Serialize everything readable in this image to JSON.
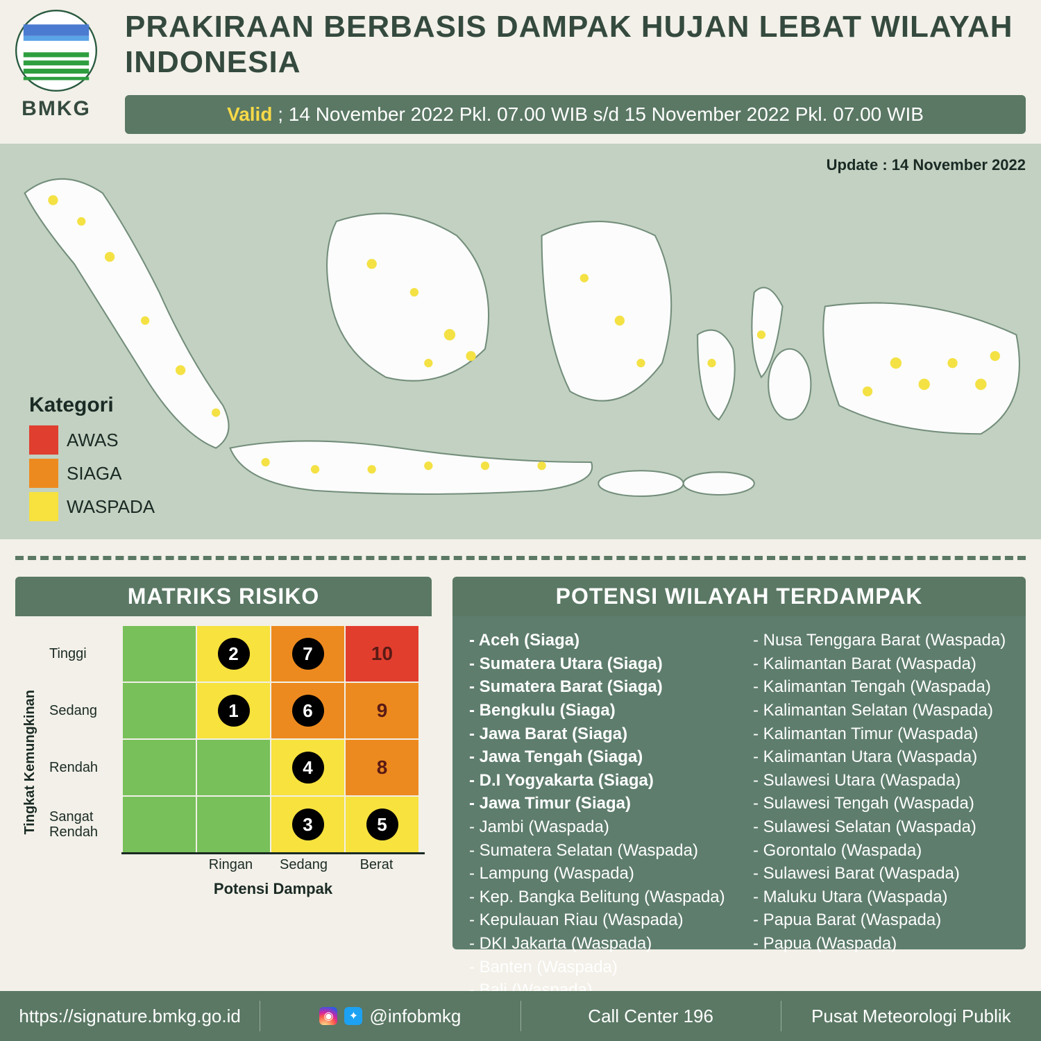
{
  "colors": {
    "page_bg": "#f2f0e8",
    "green_dark": "#354a3f",
    "green_bar": "#5a7864",
    "green_impact_bg": "#5e7d6d",
    "map_bg": "#c2d1c1",
    "awas": "#e03e2f",
    "siaga": "#ed8a1f",
    "waspada": "#f7e23e",
    "matrix_green": "#78c05a",
    "matrix_red": "#e23e2e",
    "valid_label": "#f7d948",
    "text_dark": "#1a2a24",
    "white": "#ffffff",
    "black": "#000000"
  },
  "header": {
    "logo_text": "BMKG",
    "title": "PRAKIRAAN BERBASIS DAMPAK HUJAN LEBAT WILAYAH INDONESIA",
    "valid_label": "Valid",
    "valid_text": "; 14 November 2022 Pkl. 07.00 WIB s/d 15 November 2022 Pkl. 07.00 WIB"
  },
  "map": {
    "update_label": "Update : 14 November 2022",
    "kategori_title": "Kategori",
    "categories": [
      {
        "label": "AWAS",
        "color": "#e03e2f"
      },
      {
        "label": "SIAGA",
        "color": "#ed8a1f"
      },
      {
        "label": "WASPADA",
        "color": "#f7e23e"
      }
    ]
  },
  "matrix": {
    "title": "MATRIKS RISIKO",
    "y_axis": "Tingkat Kemungkinan",
    "x_axis": "Potensi Dampak",
    "row_labels": [
      "Tinggi",
      "Sedang",
      "Rendah",
      "Sangat Rendah"
    ],
    "col_labels": [
      "",
      "Ringan",
      "Sedang",
      "Berat"
    ],
    "cells": [
      [
        {
          "bg": "#78c05a",
          "num": null
        },
        {
          "bg": "#f7e23e",
          "num": "2",
          "circ": true
        },
        {
          "bg": "#ed8a1f",
          "num": "7",
          "circ": true
        },
        {
          "bg": "#e23e2e",
          "num": "10",
          "circ": false,
          "text_color": "#5a1a14"
        }
      ],
      [
        {
          "bg": "#78c05a",
          "num": null
        },
        {
          "bg": "#f7e23e",
          "num": "1",
          "circ": true
        },
        {
          "bg": "#ed8a1f",
          "num": "6",
          "circ": true
        },
        {
          "bg": "#ed8a1f",
          "num": "9",
          "circ": false,
          "text_color": "#5a1a14"
        }
      ],
      [
        {
          "bg": "#78c05a",
          "num": null
        },
        {
          "bg": "#78c05a",
          "num": null
        },
        {
          "bg": "#f7e23e",
          "num": "4",
          "circ": true
        },
        {
          "bg": "#ed8a1f",
          "num": "8",
          "circ": false,
          "text_color": "#5a1a14"
        }
      ],
      [
        {
          "bg": "#78c05a",
          "num": null
        },
        {
          "bg": "#78c05a",
          "num": null
        },
        {
          "bg": "#f7e23e",
          "num": "3",
          "circ": true
        },
        {
          "bg": "#f7e23e",
          "num": "5",
          "circ": true
        }
      ]
    ]
  },
  "impact": {
    "title": "POTENSI WILAYAH TERDAMPAK",
    "col1": [
      {
        "t": "- Aceh (Siaga)",
        "b": true
      },
      {
        "t": "- Sumatera Utara (Siaga)",
        "b": true
      },
      {
        "t": "- Sumatera Barat (Siaga)",
        "b": true
      },
      {
        "t": "- Bengkulu (Siaga)",
        "b": true
      },
      {
        "t": "- Jawa Barat (Siaga)",
        "b": true
      },
      {
        "t": "- Jawa Tengah (Siaga)",
        "b": true
      },
      {
        "t": "- D.I Yogyakarta (Siaga)",
        "b": true
      },
      {
        "t": "- Jawa Timur (Siaga)",
        "b": true
      },
      {
        "t": "- Jambi (Waspada)",
        "b": false
      },
      {
        "t": "- Sumatera Selatan (Waspada)",
        "b": false
      },
      {
        "t": "- Lampung (Waspada)",
        "b": false
      },
      {
        "t": "- Kep. Bangka Belitung (Waspada)",
        "b": false
      },
      {
        "t": "- Kepulauan Riau (Waspada)",
        "b": false
      },
      {
        "t": "- DKI Jakarta (Waspada)",
        "b": false
      },
      {
        "t": "- Banten (Waspada)",
        "b": false
      },
      {
        "t": "- Bali (Waspada)",
        "b": false
      }
    ],
    "col2": [
      {
        "t": "- Nusa Tenggara Barat (Waspada)",
        "b": false
      },
      {
        "t": "- Kalimantan Barat (Waspada)",
        "b": false
      },
      {
        "t": "- Kalimantan Tengah (Waspada)",
        "b": false
      },
      {
        "t": "- Kalimantan Selatan (Waspada)",
        "b": false
      },
      {
        "t": "- Kalimantan Timur (Waspada)",
        "b": false
      },
      {
        "t": "- Kalimantan Utara (Waspada)",
        "b": false
      },
      {
        "t": "- Sulawesi Utara (Waspada)",
        "b": false
      },
      {
        "t": "- Sulawesi Tengah (Waspada)",
        "b": false
      },
      {
        "t": "- Sulawesi Selatan (Waspada)",
        "b": false
      },
      {
        "t": "- Gorontalo (Waspada)",
        "b": false
      },
      {
        "t": "- Sulawesi Barat (Waspada)",
        "b": false
      },
      {
        "t": "- Maluku Utara (Waspada)",
        "b": false
      },
      {
        "t": "- Papua Barat (Waspada)",
        "b": false
      },
      {
        "t": "- Papua (Waspada)",
        "b": false
      }
    ]
  },
  "footer": {
    "url": "https://signature.bmkg.go.id",
    "handle": "@infobmkg",
    "call": "Call Center 196",
    "org": "Pusat Meteorologi Publik"
  }
}
